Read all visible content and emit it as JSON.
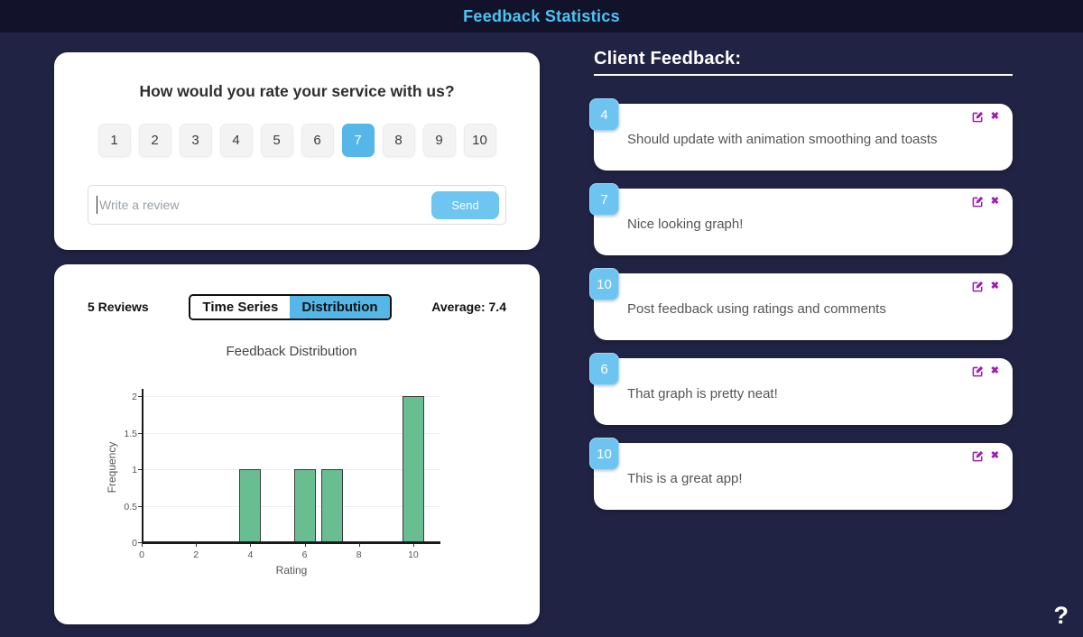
{
  "header": {
    "title": "Feedback Statistics"
  },
  "rating_card": {
    "question": "How would you rate your service with us?",
    "options": [
      "1",
      "2",
      "3",
      "4",
      "5",
      "6",
      "7",
      "8",
      "9",
      "10"
    ],
    "selected": "7",
    "review_placeholder": "Write a review",
    "send_label": "Send"
  },
  "stats_card": {
    "reviews_label": "5 Reviews",
    "toggle": {
      "options": [
        "Time Series",
        "Distribution"
      ],
      "selected": "Distribution"
    },
    "average_label": "Average: 7.4"
  },
  "chart_data": {
    "type": "bar",
    "title": "Feedback Distribution",
    "xlabel": "Rating",
    "ylabel": "Frequency",
    "x": [
      4,
      6,
      7,
      10
    ],
    "values": [
      1,
      1,
      1,
      2
    ],
    "bar_width": 0.8,
    "xlim": [
      0,
      11
    ],
    "ylim": [
      0,
      2
    ],
    "xticks": [
      0,
      2,
      4,
      6,
      8,
      10
    ],
    "yticks": [
      0,
      0.5,
      1,
      1.5,
      2
    ],
    "grid": true,
    "legend": false
  },
  "feedback_panel": {
    "heading": "Client Feedback:",
    "items": [
      {
        "rating": "4",
        "comment": "Should update with animation smoothing and toasts"
      },
      {
        "rating": "7",
        "comment": "Nice looking graph!"
      },
      {
        "rating": "10",
        "comment": "Post feedback using ratings and comments"
      },
      {
        "rating": "6",
        "comment": "That graph is pretty neat!"
      },
      {
        "rating": "10",
        "comment": "This is a great app!"
      }
    ]
  },
  "help": {
    "label": "?"
  },
  "colors": {
    "background": "#212344",
    "header_background": "#12132b",
    "title": "#4cc5f2",
    "accent": "#54b7e8",
    "badge": "#6ec4f1",
    "send_button": "#6fc5f1",
    "action_icon": "#a21caf",
    "bar_fill": "#69be91",
    "bar_border": "#3b3b3b"
  }
}
